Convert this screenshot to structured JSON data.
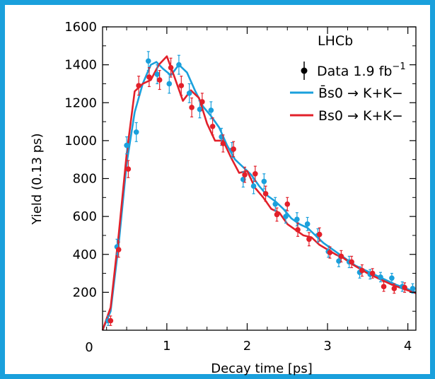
{
  "chart_data": {
    "type": "scatter",
    "xlabel": "Decay time [ps]",
    "ylabel": "Yield (0.13 ps)",
    "xlim": [
      0.2,
      4.1
    ],
    "ylim": [
      0,
      1600
    ],
    "x_ticks": [
      "0",
      "1",
      "2",
      "3",
      "4"
    ],
    "y_ticks": [
      "200",
      "400",
      "600",
      "800",
      "1000",
      "1200",
      "1400",
      "1600"
    ],
    "legend_title": "LHCb",
    "legend_data_label": "Data 1.9 fb",
    "legend_data_exp": "−1",
    "legend_placement": "top-right",
    "colors": {
      "blue": "#1aa0dc",
      "red": "#e2202a",
      "frame": "#1aa0dc"
    },
    "series": [
      {
        "name": "B̄s0 → K+K−",
        "color": "#1aa0dc",
        "x": [
          0.27,
          0.38,
          0.5,
          0.62,
          0.77,
          0.88,
          1.03,
          1.15,
          1.28,
          1.41,
          1.55,
          1.68,
          1.81,
          1.95,
          2.08,
          2.21,
          2.35,
          2.48,
          2.62,
          2.75,
          2.88,
          3.01,
          3.14,
          3.27,
          3.4,
          3.53,
          3.66,
          3.8,
          3.93,
          4.06
        ],
        "y": [
          50,
          440,
          975,
          1045,
          1420,
          1350,
          1300,
          1400,
          1250,
          1165,
          1160,
          1020,
          950,
          795,
          760,
          785,
          665,
          600,
          585,
          560,
          500,
          415,
          365,
          360,
          305,
          295,
          280,
          275,
          230,
          220
        ],
        "err": [
          25,
          40,
          45,
          50,
          50,
          50,
          50,
          50,
          50,
          45,
          45,
          45,
          40,
          40,
          40,
          40,
          35,
          35,
          35,
          35,
          35,
          30,
          30,
          30,
          30,
          25,
          25,
          25,
          25,
          25
        ]
      },
      {
        "name": "Bs0 → K+K−",
        "color": "#e2202a",
        "x": [
          0.3,
          0.4,
          0.52,
          0.65,
          0.78,
          0.91,
          1.05,
          1.18,
          1.31,
          1.44,
          1.57,
          1.7,
          1.83,
          1.97,
          2.1,
          2.23,
          2.37,
          2.5,
          2.63,
          2.77,
          2.9,
          3.03,
          3.17,
          3.3,
          3.43,
          3.56,
          3.7,
          3.83,
          3.96
        ],
        "y": [
          50,
          425,
          850,
          1290,
          1335,
          1320,
          1385,
          1290,
          1175,
          1205,
          1075,
          985,
          955,
          820,
          825,
          720,
          610,
          665,
          530,
          480,
          505,
          410,
          390,
          360,
          315,
          300,
          230,
          220,
          225
        ],
        "err": [
          25,
          40,
          45,
          50,
          50,
          50,
          50,
          50,
          50,
          45,
          45,
          45,
          40,
          40,
          40,
          40,
          35,
          35,
          35,
          35,
          35,
          30,
          30,
          30,
          30,
          25,
          25,
          25,
          25
        ]
      }
    ],
    "fit_curves": [
      {
        "name": "B̄s0 → K+K−",
        "color": "#1aa0dc",
        "x": [
          0.2,
          0.3,
          0.4,
          0.5,
          0.6,
          0.7,
          0.8,
          0.87,
          0.95,
          1.05,
          1.15,
          1.25,
          1.35,
          1.45,
          1.55,
          1.65,
          1.75,
          1.85,
          1.95,
          2.05,
          2.15,
          2.25,
          2.35,
          2.45,
          2.55,
          2.65,
          2.75,
          2.85,
          2.95,
          3.05,
          3.15,
          3.25,
          3.35,
          3.45,
          3.55,
          3.65,
          3.75,
          3.85,
          3.95,
          4.1
        ],
        "y": [
          0,
          100,
          450,
          880,
          1150,
          1300,
          1400,
          1415,
          1380,
          1345,
          1400,
          1360,
          1265,
          1180,
          1130,
          1070,
          975,
          900,
          860,
          820,
          760,
          710,
          680,
          640,
          590,
          560,
          540,
          500,
          460,
          430,
          400,
          370,
          340,
          320,
          300,
          280,
          260,
          240,
          225,
          200
        ]
      },
      {
        "name": "Bs0 → K+K−",
        "color": "#e2202a",
        "x": [
          0.2,
          0.3,
          0.4,
          0.5,
          0.6,
          0.7,
          0.8,
          0.9,
          1.0,
          1.1,
          1.2,
          1.3,
          1.4,
          1.5,
          1.6,
          1.7,
          1.8,
          1.9,
          2.0,
          2.1,
          2.2,
          2.3,
          2.4,
          2.5,
          2.6,
          2.7,
          2.8,
          2.9,
          3.0,
          3.1,
          3.2,
          3.3,
          3.4,
          3.5,
          3.6,
          3.7,
          3.8,
          3.9,
          4.0,
          4.1
        ],
        "y": [
          0,
          120,
          500,
          930,
          1260,
          1300,
          1320,
          1400,
          1445,
          1330,
          1210,
          1265,
          1225,
          1090,
          1000,
          1000,
          910,
          830,
          840,
          750,
          700,
          640,
          620,
          560,
          530,
          500,
          490,
          450,
          425,
          400,
          380,
          350,
          325,
          300,
          280,
          260,
          240,
          225,
          210,
          195
        ]
      }
    ]
  }
}
